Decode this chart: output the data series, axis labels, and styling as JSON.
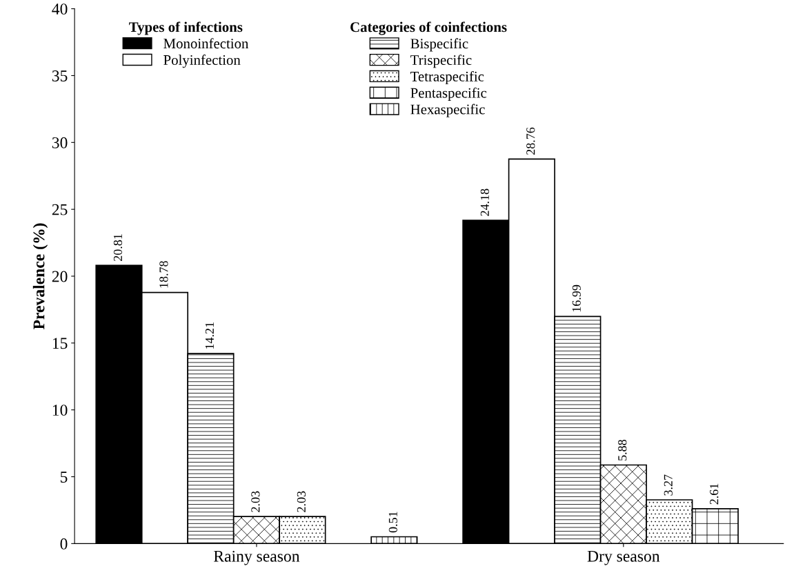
{
  "chart_data": {
    "type": "bar",
    "ylabel": "Prevalence (%)",
    "categories": [
      "Rainy season",
      "Dry season"
    ],
    "series": [
      {
        "name": "Monoinfection",
        "color": "#000000",
        "values": [
          20.81,
          24.18
        ]
      },
      {
        "name": "Polyinfection",
        "color": "#ffffff",
        "values": [
          18.78,
          28.76
        ]
      },
      {
        "name": "Bispecific",
        "color": "#000000",
        "values": [
          14.21,
          16.99
        ]
      },
      {
        "name": "Trispecific",
        "color": "#000000",
        "values": [
          2.03,
          5.88
        ]
      },
      {
        "name": "Tetraspecific",
        "color": "#000000",
        "values": [
          2.03,
          3.27
        ]
      },
      {
        "name": "Pentaspecific",
        "color": "#000000",
        "values": [
          null,
          2.61
        ]
      },
      {
        "name": "Hexaspecific",
        "color": "#000000",
        "values": [
          0.51,
          null
        ]
      }
    ],
    "legend_title": [
      "Types of infections",
      "Categories of coinfections"
    ],
    "legend": "top",
    "data_labels": true,
    "ylim": [
      0,
      40
    ],
    "yticks": [
      0,
      5,
      10,
      15,
      20,
      25,
      30,
      35,
      40
    ],
    "grid": false
  }
}
